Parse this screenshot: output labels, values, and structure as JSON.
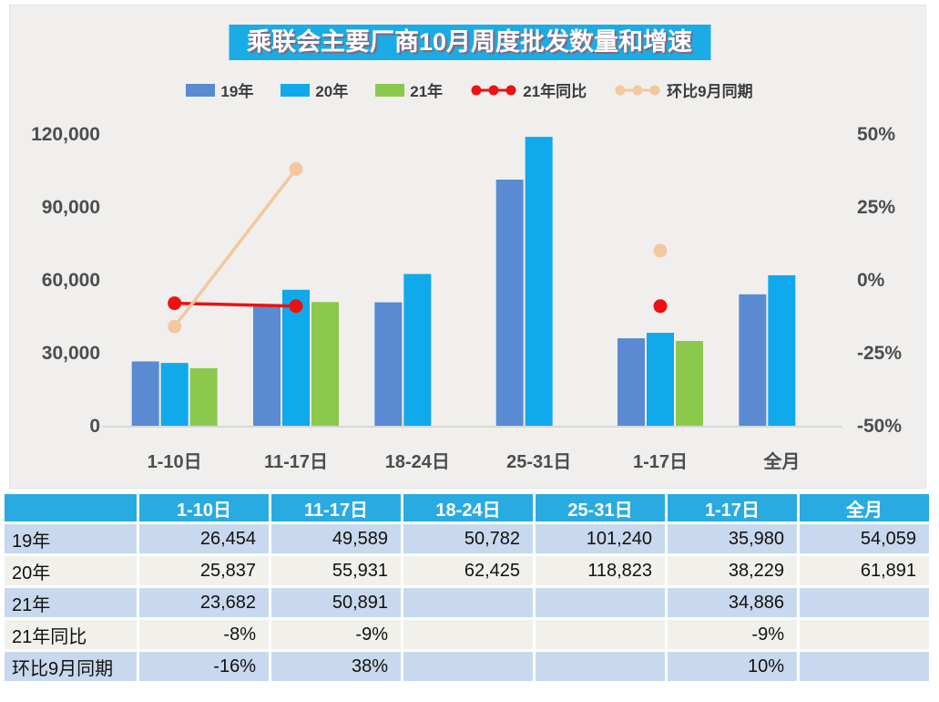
{
  "title": "乘联会主要厂商10月周度批发数量和增速",
  "colors": {
    "bg_panel": "#f0efed",
    "title_bg": "#1bace6",
    "bar_19": "#5a8ad2",
    "bar_20": "#10a9ec",
    "bar_21": "#8cc84c",
    "line_yoy": "#ee1111",
    "line_mom": "#f4c79e",
    "axis_text": "#4d4d4d",
    "baseline": "#d8d8d8",
    "table_header_bg": "#29abe2",
    "row_blue": "#c8d8ee",
    "row_grey": "#f1f0eb"
  },
  "legend": [
    {
      "label": "19年",
      "type": "bar",
      "color_key": "bar_19"
    },
    {
      "label": "20年",
      "type": "bar",
      "color_key": "bar_20"
    },
    {
      "label": "21年",
      "type": "bar",
      "color_key": "bar_21"
    },
    {
      "label": "21年同比",
      "type": "line",
      "color_key": "line_yoy"
    },
    {
      "label": "环比9月同期",
      "type": "line",
      "color_key": "line_mom"
    }
  ],
  "chart_data": {
    "type": "bar",
    "subtype": "grouped bars with two percent line series on secondary axis",
    "title": "乘联会主要厂商10月周度批发数量和增速",
    "categories": [
      "1-10日",
      "11-17日",
      "18-24日",
      "25-31日",
      "1-17日",
      "全月"
    ],
    "bar_series": [
      {
        "name": "19年",
        "color_key": "bar_19",
        "values": [
          26454,
          49589,
          50782,
          101240,
          35980,
          54059
        ]
      },
      {
        "name": "20年",
        "color_key": "bar_20",
        "values": [
          25837,
          55931,
          62425,
          118823,
          38229,
          61891
        ]
      },
      {
        "name": "21年",
        "color_key": "bar_21",
        "values": [
          23682,
          50891,
          null,
          null,
          34886,
          null
        ]
      }
    ],
    "line_series": [
      {
        "name": "21年同比",
        "color_key": "line_yoy",
        "values_pct": [
          -8,
          -9,
          null,
          null,
          -9,
          null
        ]
      },
      {
        "name": "环比9月同期",
        "color_key": "line_mom",
        "values_pct": [
          -16,
          38,
          null,
          null,
          10,
          null
        ]
      }
    ],
    "y_left": {
      "min": 0,
      "max": 120000,
      "ticks": [
        "0",
        "30,000",
        "60,000",
        "90,000",
        "120,000"
      ]
    },
    "y_right": {
      "min": -50,
      "max": 50,
      "ticks": [
        "-50%",
        "-25%",
        "0%",
        "25%",
        "50%"
      ]
    },
    "grid": "off",
    "legend_position": "top"
  },
  "table": {
    "columns": [
      "",
      "1-10日",
      "11-17日",
      "18-24日",
      "25-31日",
      "1-17日",
      "全月"
    ],
    "rows": [
      {
        "label": "19年",
        "cells": [
          "26,454",
          "49,589",
          "50,782",
          "101,240",
          "35,980",
          "54,059"
        ]
      },
      {
        "label": "20年",
        "cells": [
          "25,837",
          "55,931",
          "62,425",
          "118,823",
          "38,229",
          "61,891"
        ]
      },
      {
        "label": "21年",
        "cells": [
          "23,682",
          "50,891",
          "",
          "",
          "34,886",
          ""
        ]
      },
      {
        "label": "21年同比",
        "cells": [
          "-8%",
          "-9%",
          "",
          "",
          "-9%",
          ""
        ]
      },
      {
        "label": "环比9月同期",
        "cells": [
          "-16%",
          "38%",
          "",
          "",
          "10%",
          ""
        ]
      }
    ]
  }
}
